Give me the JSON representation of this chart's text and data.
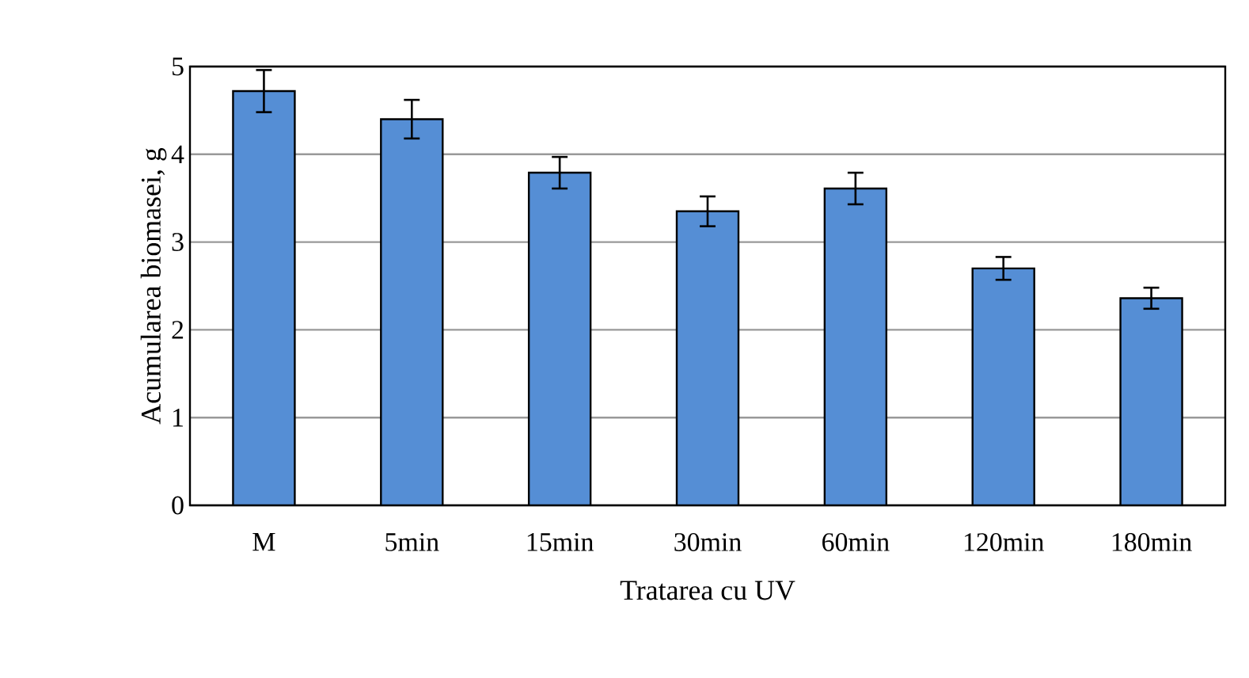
{
  "chart_data": {
    "type": "bar",
    "xlabel": "Tratarea cu UV",
    "ylabel": "Acumularea biomasei, g",
    "categories": [
      "M",
      "5min",
      "15min",
      "30min",
      "60min",
      "120min",
      "180min"
    ],
    "values": [
      4.72,
      4.4,
      3.79,
      3.35,
      3.61,
      2.7,
      2.36
    ],
    "errors": [
      0.24,
      0.22,
      0.18,
      0.17,
      0.18,
      0.13,
      0.12
    ],
    "color": "#558ed5",
    "ylim": [
      0,
      5
    ],
    "yticks": [
      0,
      1,
      2,
      3,
      4,
      5
    ],
    "grid": "y"
  }
}
